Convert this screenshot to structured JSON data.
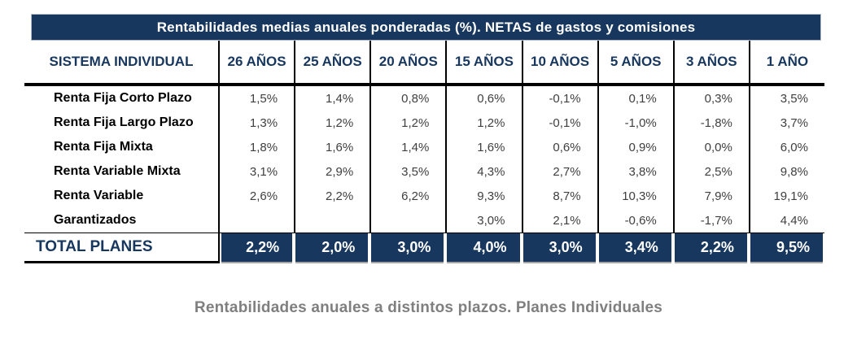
{
  "table": {
    "title": "Rentabilidades medias anuales ponderadas (%). NETAS de gastos y comisiones",
    "header": {
      "label": "SISTEMA INDIVIDUAL",
      "periods": [
        "26 AÑOS",
        "25 AÑOS",
        "20 AÑOS",
        "15 AÑOS",
        "10 AÑOS",
        "5 AÑOS",
        "3 AÑOS",
        "1 AÑO"
      ]
    },
    "rows": [
      {
        "label": "Renta Fija Corto Plazo",
        "values": [
          "1,5%",
          "1,4%",
          "0,8%",
          "0,6%",
          "-0,1%",
          "0,1%",
          "0,3%",
          "3,5%"
        ]
      },
      {
        "label": "Renta Fija Largo Plazo",
        "values": [
          "1,3%",
          "1,2%",
          "1,2%",
          "1,2%",
          "-0,1%",
          "-1,0%",
          "-1,8%",
          "3,7%"
        ]
      },
      {
        "label": "Renta Fija Mixta",
        "values": [
          "1,8%",
          "1,6%",
          "1,4%",
          "1,6%",
          "0,6%",
          "0,9%",
          "0,0%",
          "6,0%"
        ]
      },
      {
        "label": "Renta Variable Mixta",
        "values": [
          "3,1%",
          "2,9%",
          "3,5%",
          "4,3%",
          "2,7%",
          "3,8%",
          "2,5%",
          "9,8%"
        ]
      },
      {
        "label": "Renta Variable",
        "values": [
          "2,6%",
          "2,2%",
          "6,2%",
          "9,3%",
          "8,7%",
          "10,3%",
          "7,9%",
          "19,1%"
        ]
      },
      {
        "label": "Garantizados",
        "values": [
          "",
          "",
          "",
          "3,0%",
          "2,1%",
          "-0,6%",
          "-1,7%",
          "4,4%"
        ]
      }
    ],
    "total": {
      "label": "TOTAL PLANES",
      "values": [
        "2,2%",
        "2,0%",
        "3,0%",
        "4,0%",
        "3,0%",
        "3,4%",
        "2,2%",
        "9,5%"
      ]
    }
  },
  "caption": "Rentabilidades anuales a distintos plazos. Planes Individuales",
  "colors": {
    "navy": "#17375E",
    "value_text": "#3F3F3F",
    "caption_gray": "#7F7F7F",
    "line_black": "#000000"
  },
  "chart_data": {
    "type": "table",
    "title": "Rentabilidades medias anuales ponderadas (%). NETAS de gastos y comisiones",
    "caption": "Rentabilidades anuales a distintos plazos. Planes Individuales",
    "columns": [
      "SISTEMA INDIVIDUAL",
      "26 AÑOS",
      "25 AÑOS",
      "20 AÑOS",
      "15 AÑOS",
      "10 AÑOS",
      "5 AÑOS",
      "3 AÑOS",
      "1 AÑO"
    ],
    "rows": [
      [
        "Renta Fija Corto Plazo",
        1.5,
        1.4,
        0.8,
        0.6,
        -0.1,
        0.1,
        0.3,
        3.5
      ],
      [
        "Renta Fija Largo Plazo",
        1.3,
        1.2,
        1.2,
        1.2,
        -0.1,
        -1.0,
        -1.8,
        3.7
      ],
      [
        "Renta Fija Mixta",
        1.8,
        1.6,
        1.4,
        1.6,
        0.6,
        0.9,
        0.0,
        6.0
      ],
      [
        "Renta Variable Mixta",
        3.1,
        2.9,
        3.5,
        4.3,
        2.7,
        3.8,
        2.5,
        9.8
      ],
      [
        "Renta Variable",
        2.6,
        2.2,
        6.2,
        9.3,
        8.7,
        10.3,
        7.9,
        19.1
      ],
      [
        "Garantizados",
        null,
        null,
        null,
        3.0,
        2.1,
        -0.6,
        -1.7,
        4.4
      ],
      [
        "TOTAL PLANES",
        2.2,
        2.0,
        3.0,
        4.0,
        3.0,
        3.4,
        2.2,
        9.5
      ]
    ],
    "units": "%"
  }
}
